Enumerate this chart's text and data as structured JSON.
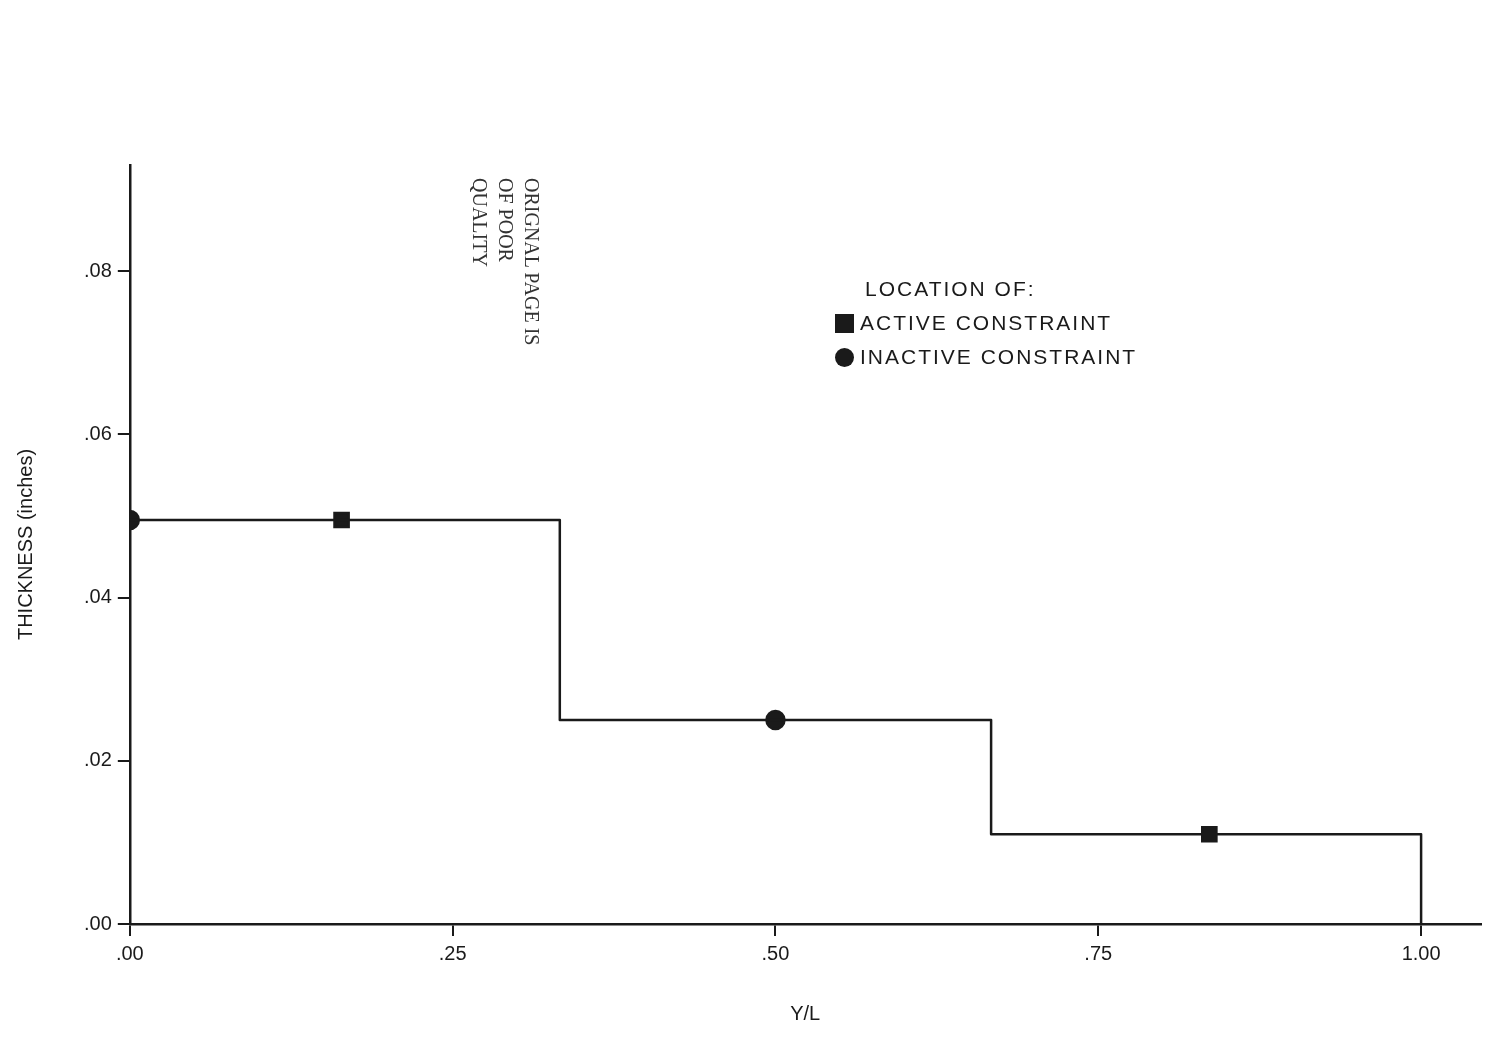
{
  "chart_data": {
    "type": "step",
    "xlabel": "Y/L",
    "ylabel": "THICKNESS (inches)",
    "legend_title": "LOCATION OF:",
    "legend": "top right",
    "grid": false,
    "annotations": [
      "ORIGNAL PAGE IS OF POOR QUALITY"
    ],
    "xlim": [
      0,
      1.046
    ],
    "xticks": [
      {
        "value": 0,
        "label": ".00"
      },
      {
        "value": 0.25,
        "label": ".25"
      },
      {
        "value": 0.5,
        "label": ".50"
      },
      {
        "value": 0.75,
        "label": ".75"
      },
      {
        "value": 1,
        "label": "1.00"
      }
    ],
    "ylim": [
      0,
      0.093
    ],
    "yticks": [
      {
        "value": 0,
        "label": ".00"
      },
      {
        "value": 0.02,
        "label": ".02"
      },
      {
        "value": 0.04,
        "label": ".04"
      },
      {
        "value": 0.06,
        "label": ".06"
      },
      {
        "value": 0.08,
        "label": ".08"
      }
    ],
    "series": [
      {
        "color": "#1a1a1a",
        "marker": "none",
        "x": [
          0,
          0.333,
          0.667,
          1,
          1
        ],
        "values": [
          0.0495,
          0.025,
          0.011,
          0.011,
          0
        ]
      },
      {
        "type": "scatter",
        "name": "ACTIVE CONSTRAINT",
        "color": "#1a1a1a",
        "marker": "square",
        "x": [
          0.164,
          0.836
        ],
        "values": [
          0.0495,
          0.011
        ]
      },
      {
        "type": "scatter",
        "name": "INACTIVE CONSTRAINT",
        "color": "#1a1a1a",
        "marker": "circle",
        "x": [
          0,
          0.5
        ],
        "values": [
          0.0495,
          0.025
        ]
      }
    ]
  }
}
